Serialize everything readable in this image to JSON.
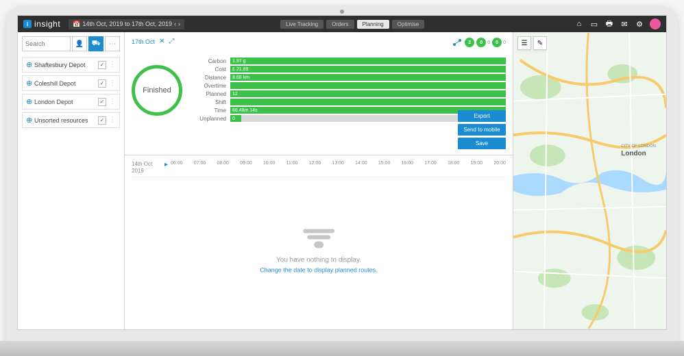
{
  "brand": {
    "logo_letter": "i",
    "name": "insight"
  },
  "date_range": "14th Oct, 2019 to 17th Oct, 2019",
  "nav": {
    "tabs": [
      {
        "label": "Live Tracking",
        "active": false
      },
      {
        "label": "Orders",
        "active": false
      },
      {
        "label": "Planning",
        "active": true
      },
      {
        "label": "Optimise",
        "active": false
      }
    ]
  },
  "top_icons": [
    "home",
    "screen",
    "print",
    "mail",
    "settings"
  ],
  "sidebar": {
    "search_placeholder": "Search",
    "depots": [
      {
        "label": "Shaftesbury Depot",
        "checked": true
      },
      {
        "label": "Coleshill Depot",
        "checked": true
      },
      {
        "label": "London Depot",
        "checked": true
      },
      {
        "label": "Unsorted resources",
        "checked": true
      }
    ]
  },
  "summary": {
    "date": "17th Oct",
    "status_text": "Finished",
    "ring_color": "#3ec04a",
    "pills": [
      {
        "value": "2",
        "label": "",
        "color": "#3ec04a"
      },
      {
        "value": "0",
        "label": "0",
        "color": "#3ec04a"
      },
      {
        "value": "0",
        "label": "0",
        "color": "#3ec04a"
      }
    ],
    "metrics": [
      {
        "label": "Carbon",
        "value": "1.97 g",
        "pct": 100
      },
      {
        "label": "Cost",
        "value": "£ 21.89",
        "pct": 100
      },
      {
        "label": "Distance",
        "value": "8.68 km",
        "pct": 100
      },
      {
        "label": "Overtime",
        "value": "",
        "pct": 100
      },
      {
        "label": "Planned",
        "value": "12",
        "pct": 100
      },
      {
        "label": "Shift",
        "value": "",
        "pct": 100
      },
      {
        "label": "Time",
        "value": "66.48m 14s",
        "pct": 100
      },
      {
        "label": "Unplanned",
        "value": "0",
        "pct": 4
      }
    ],
    "actions": [
      {
        "label": "Export"
      },
      {
        "label": "Send to mobile"
      },
      {
        "label": "Save"
      }
    ]
  },
  "timeline": {
    "date_line1": "14th Oct",
    "date_line2": "2019",
    "hours": [
      "06:00",
      "07:00",
      "08:00",
      "09:00",
      "10:00",
      "11:00",
      "12:00",
      "13:00",
      "14:00",
      "15:00",
      "16:00",
      "17:00",
      "18:00",
      "19:00",
      "20:00"
    ],
    "empty_title": "You have nothing to display.",
    "empty_sub": "Change the date to display planned routes."
  },
  "map": {
    "city_label": "London",
    "area_label": "CITY OF LONDON",
    "colors": {
      "land": "#eef5ec",
      "park": "#c7e6b8",
      "water": "#aadaff",
      "road_major": "#f7ca6c",
      "road_minor": "#ffffff",
      "label": "#777777"
    }
  }
}
